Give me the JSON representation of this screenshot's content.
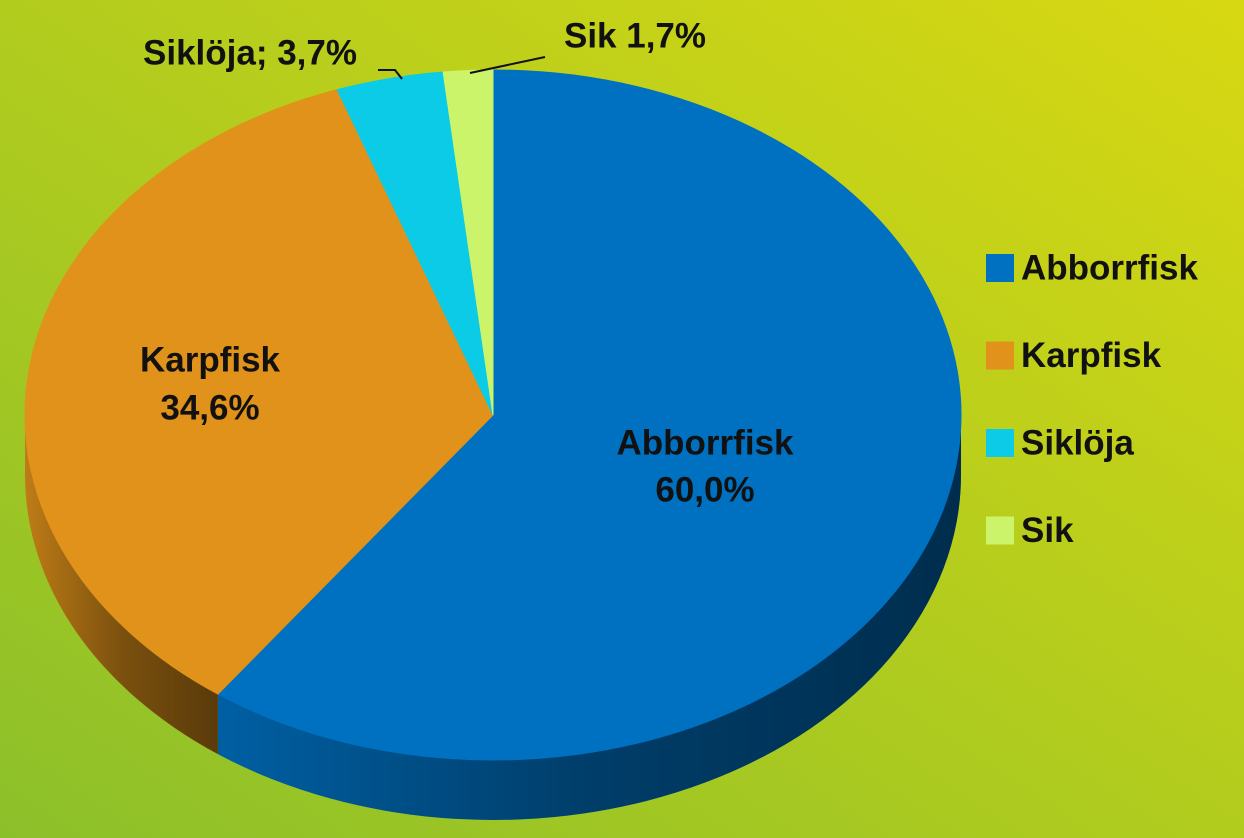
{
  "chart_data": {
    "type": "pie",
    "categories": [
      "Abborrfisk",
      "Karpfisk",
      "Siklöja",
      "Sik"
    ],
    "values": [
      60.0,
      34.6,
      3.7,
      1.7
    ],
    "value_labels": [
      "60,0%",
      "34,6%",
      "Siklöja; 3,7%",
      "Sik 1,7%"
    ],
    "colors": [
      "#0070c0",
      "#e0921a",
      "#0ccbe6",
      "#ccf46a"
    ],
    "legend": "right"
  }
}
